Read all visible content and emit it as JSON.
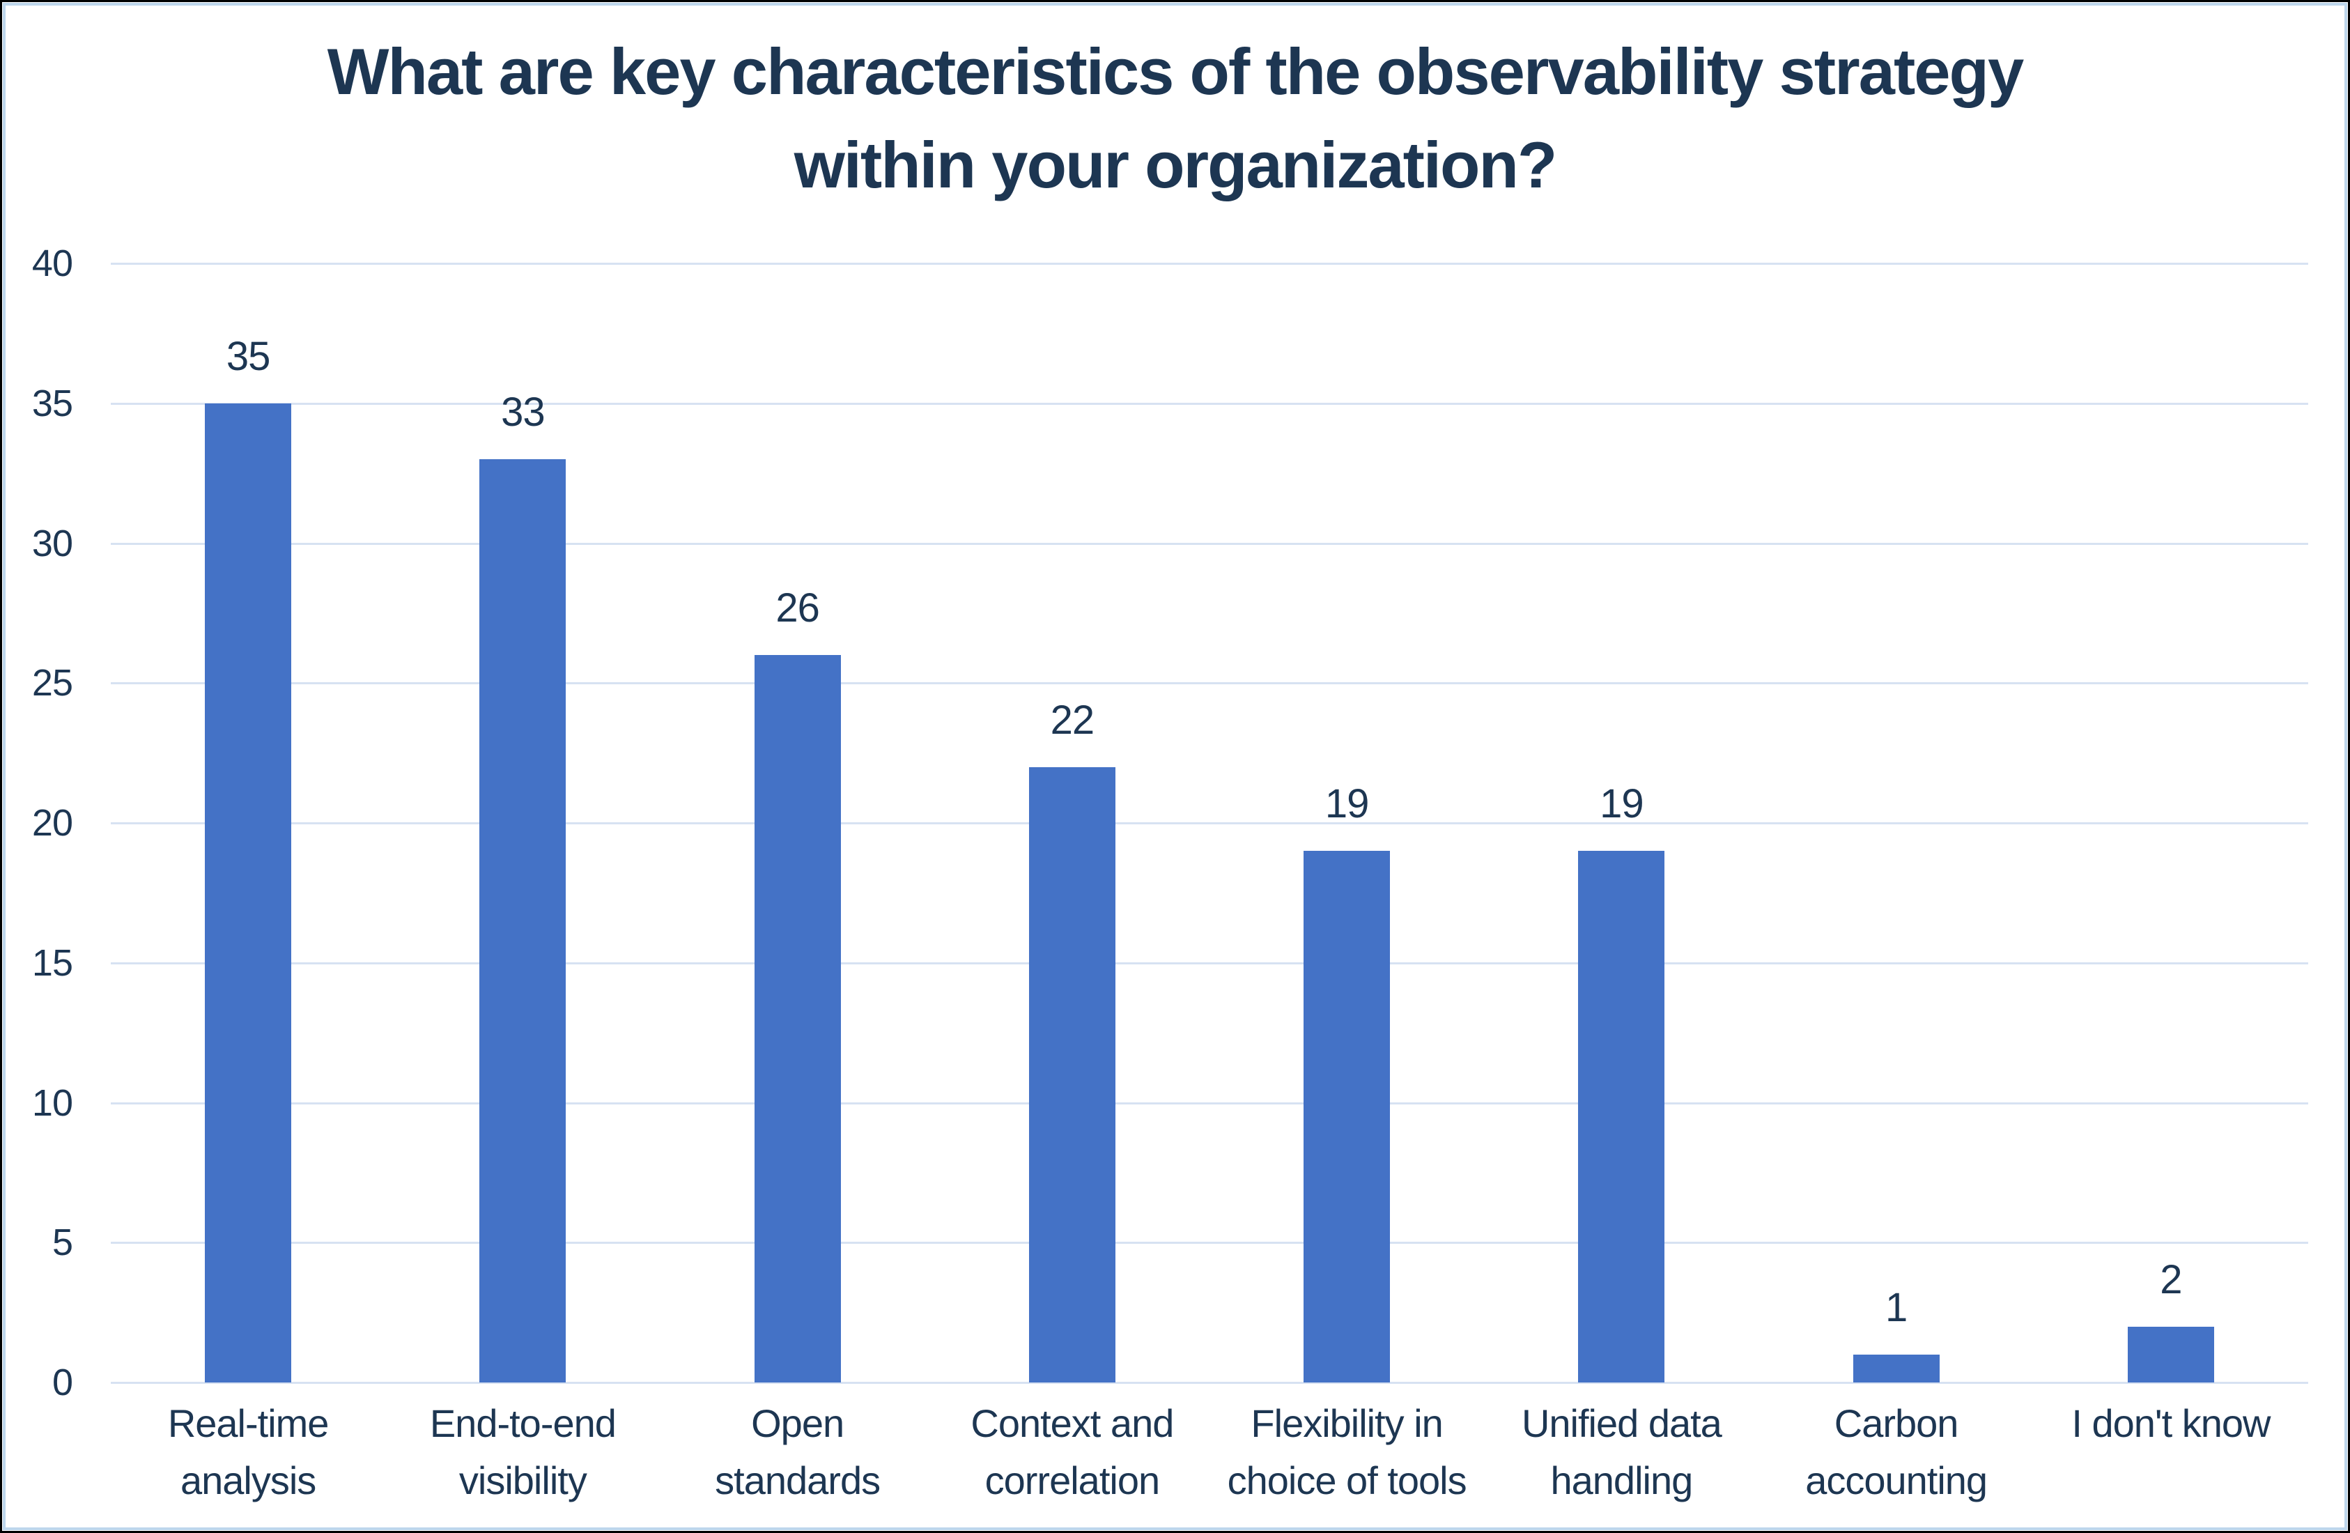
{
  "title": {
    "line1": "What are key characteristics of the observability strategy",
    "line2": "within your organization?"
  },
  "colors": {
    "bar": "#4472c6",
    "text": "#1d3652",
    "gridline": "#d7e2f2",
    "chart_border": "#bdd6ec",
    "frame_border": "#000000",
    "background": "#ffffff"
  },
  "chart_data": {
    "type": "bar",
    "title": "What are key characteristics of the observability strategy within your organization?",
    "categories": [
      "Real-time analysis",
      "End-to-end visibility",
      "Open standards",
      "Context and correlation",
      "Flexibility in choice of tools",
      "Unified data handling",
      "Carbon accounting",
      "I don't know"
    ],
    "category_label_lines": [
      [
        "Real-time",
        "analysis"
      ],
      [
        "End-to-end",
        "visibility"
      ],
      [
        "Open",
        "standards"
      ],
      [
        "Context and",
        "correlation"
      ],
      [
        "Flexibility in",
        "choice of tools"
      ],
      [
        "Unified data",
        "handling"
      ],
      [
        "Carbon",
        "accounting"
      ],
      [
        "I don't know"
      ]
    ],
    "values": [
      35,
      33,
      26,
      22,
      19,
      19,
      1,
      2
    ],
    "xlabel": "",
    "ylabel": "",
    "ylim": [
      0,
      40
    ],
    "yticks": [
      40,
      35,
      30,
      25,
      20,
      15,
      10,
      5,
      0
    ],
    "grid": true,
    "legend": false,
    "data_labels": true
  }
}
